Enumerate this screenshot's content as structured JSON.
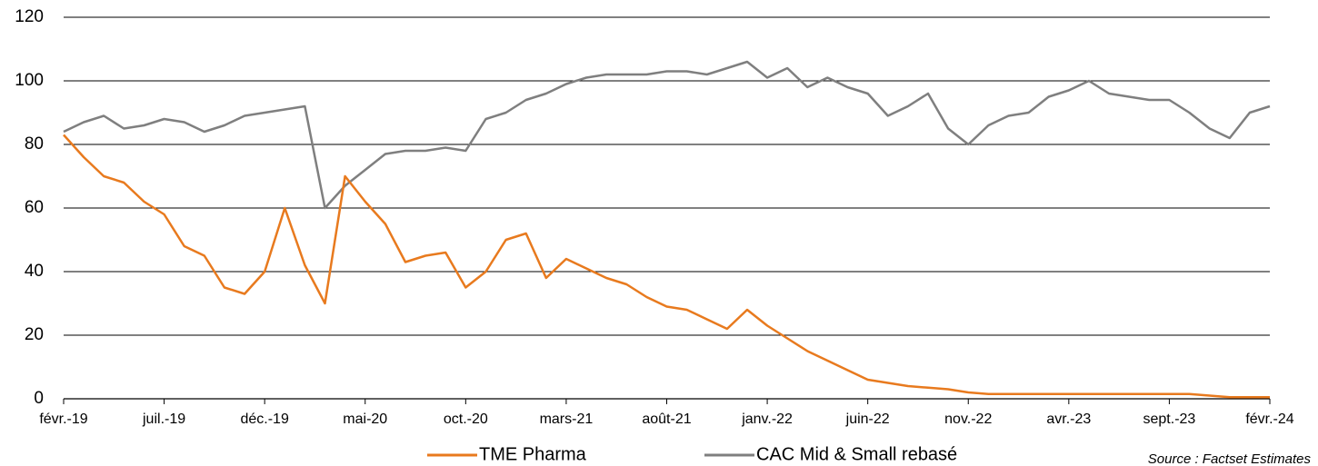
{
  "chart_data": {
    "type": "line",
    "categories": [
      "févr.-19",
      null,
      null,
      null,
      null,
      "juil.-19",
      null,
      null,
      null,
      null,
      "déc.-19",
      null,
      null,
      null,
      null,
      "mai-20",
      null,
      null,
      null,
      null,
      "oct.-20",
      null,
      null,
      null,
      null,
      "mars-21",
      null,
      null,
      null,
      null,
      "août-21",
      null,
      null,
      null,
      null,
      "janv.-22",
      null,
      null,
      null,
      null,
      "juin-22",
      null,
      null,
      null,
      null,
      "nov.-22",
      null,
      null,
      null,
      null,
      "avr.-23",
      null,
      null,
      null,
      null,
      "sept.-23",
      null,
      null,
      null,
      null,
      "févr.-24"
    ],
    "series": [
      {
        "name": "TME Pharma",
        "color": "#e87a1e",
        "values": [
          83,
          76,
          70,
          68,
          62,
          58,
          48,
          45,
          35,
          33,
          40,
          60,
          42,
          30,
          70,
          62,
          55,
          43,
          45,
          46,
          35,
          40,
          50,
          52,
          38,
          44,
          41,
          38,
          36,
          32,
          29,
          28,
          25,
          22,
          28,
          23,
          19,
          15,
          12,
          9,
          6,
          5,
          4,
          3.5,
          3,
          2,
          1.5,
          1.5,
          1.5,
          1.5,
          1.5,
          1.5,
          1.5,
          1.5,
          1.5,
          1.5,
          1.5,
          1,
          0.5,
          0.5,
          0.5
        ]
      },
      {
        "name": "CAC Mid & Small rebasé",
        "color": "#7f7f7f",
        "values": [
          84,
          87,
          89,
          85,
          86,
          88,
          87,
          84,
          86,
          89,
          90,
          91,
          92,
          60,
          67,
          72,
          77,
          78,
          78,
          79,
          78,
          88,
          90,
          94,
          96,
          99,
          101,
          102,
          102,
          102,
          103,
          103,
          102,
          104,
          106,
          101,
          104,
          98,
          101,
          98,
          96,
          89,
          92,
          96,
          85,
          80,
          86,
          89,
          90,
          95,
          97,
          100,
          96,
          95,
          94,
          94,
          90,
          85,
          82,
          90,
          92
        ]
      }
    ],
    "ylim": [
      0,
      120
    ],
    "yticks": [
      0,
      20,
      40,
      60,
      80,
      100,
      120
    ],
    "grid": true,
    "legend": "bottom",
    "source": "Source : Factset Estimates"
  }
}
